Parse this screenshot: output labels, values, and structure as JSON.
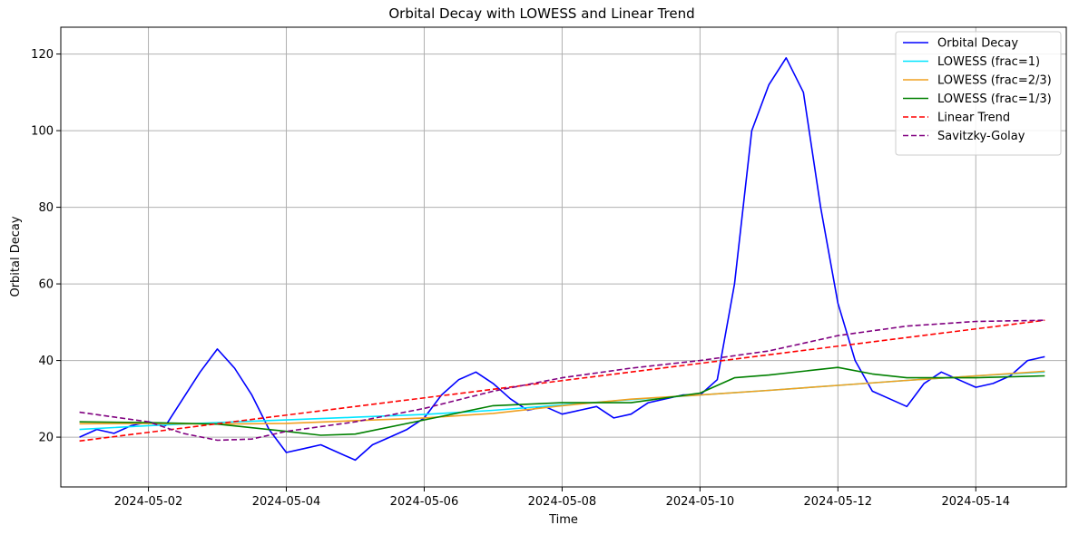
{
  "chart_data": {
    "type": "line",
    "title": "Orbital Decay with LOWESS and Linear Trend",
    "xlabel": "Time",
    "ylabel": "Orbital Decay",
    "xlim": [
      "2024-04-30T17:30",
      "2024-05-15T07:30"
    ],
    "ylim": [
      7,
      127
    ],
    "x_ticks": [
      "2024-05-02",
      "2024-05-04",
      "2024-05-06",
      "2024-05-08",
      "2024-05-10",
      "2024-05-12",
      "2024-05-14"
    ],
    "y_ticks": [
      20,
      40,
      60,
      80,
      100,
      120
    ],
    "grid": true,
    "legend_position": "top-right",
    "series": [
      {
        "name": "Orbital Decay",
        "color": "#0000ff",
        "dash": "solid",
        "x": [
          "2024-05-01T00:00",
          "2024-05-01T06:00",
          "2024-05-01T12:00",
          "2024-05-01T18:00",
          "2024-05-02T00:00",
          "2024-05-02T06:00",
          "2024-05-02T12:00",
          "2024-05-02T18:00",
          "2024-05-03T00:00",
          "2024-05-03T06:00",
          "2024-05-03T12:00",
          "2024-05-03T18:00",
          "2024-05-04T00:00",
          "2024-05-04T06:00",
          "2024-05-04T12:00",
          "2024-05-04T18:00",
          "2024-05-05T00:00",
          "2024-05-05T06:00",
          "2024-05-05T12:00",
          "2024-05-05T18:00",
          "2024-05-06T00:00",
          "2024-05-06T06:00",
          "2024-05-06T12:00",
          "2024-05-06T18:00",
          "2024-05-07T00:00",
          "2024-05-07T06:00",
          "2024-05-07T12:00",
          "2024-05-07T18:00",
          "2024-05-08T00:00",
          "2024-05-08T06:00",
          "2024-05-08T12:00",
          "2024-05-08T18:00",
          "2024-05-09T00:00",
          "2024-05-09T06:00",
          "2024-05-09T12:00",
          "2024-05-09T18:00",
          "2024-05-10T00:00",
          "2024-05-10T06:00",
          "2024-05-10T12:00",
          "2024-05-10T18:00",
          "2024-05-11T00:00",
          "2024-05-11T06:00",
          "2024-05-11T12:00",
          "2024-05-11T18:00",
          "2024-05-12T00:00",
          "2024-05-12T06:00",
          "2024-05-12T12:00",
          "2024-05-12T18:00",
          "2024-05-13T00:00",
          "2024-05-13T06:00",
          "2024-05-13T12:00",
          "2024-05-13T18:00",
          "2024-05-14T00:00",
          "2024-05-14T06:00",
          "2024-05-14T12:00",
          "2024-05-14T18:00",
          "2024-05-15T00:00"
        ],
        "y": [
          20,
          22,
          21,
          23,
          24,
          23,
          30,
          37,
          43,
          38,
          31,
          22,
          16,
          17,
          18,
          16,
          14,
          18,
          20,
          22,
          25,
          31,
          35,
          37,
          34,
          30,
          27,
          28,
          26,
          27,
          28,
          25,
          26,
          29,
          30,
          31,
          31,
          35,
          60,
          100,
          112,
          119,
          110,
          80,
          55,
          40,
          32,
          30,
          28,
          34,
          37,
          35,
          33,
          34,
          36,
          40,
          41
        ]
      },
      {
        "name": "LOWESS (frac=1)",
        "color": "#00e5ff",
        "dash": "solid",
        "x": [
          "2024-05-01T00:00",
          "2024-05-02T00:00",
          "2024-05-03T00:00",
          "2024-05-04T00:00",
          "2024-05-05T00:00",
          "2024-05-06T00:00",
          "2024-05-07T00:00",
          "2024-05-08T00:00",
          "2024-05-09T00:00",
          "2024-05-10T00:00",
          "2024-05-11T00:00",
          "2024-05-12T00:00",
          "2024-05-13T00:00",
          "2024-05-14T00:00",
          "2024-05-15T00:00"
        ],
        "y": [
          22.0,
          23.0,
          23.8,
          24.5,
          25.2,
          25.9,
          27.0,
          28.4,
          29.8,
          31.0,
          32.2,
          33.5,
          34.8,
          36.0,
          37.0
        ]
      },
      {
        "name": "LOWESS (frac=2/3)",
        "color": "#f0a020",
        "dash": "solid",
        "x": [
          "2024-05-01T00:00",
          "2024-05-02T00:00",
          "2024-05-03T00:00",
          "2024-05-04T00:00",
          "2024-05-05T00:00",
          "2024-05-06T00:00",
          "2024-05-07T00:00",
          "2024-05-08T00:00",
          "2024-05-09T00:00",
          "2024-05-10T00:00",
          "2024-05-11T00:00",
          "2024-05-12T00:00",
          "2024-05-13T00:00",
          "2024-05-14T00:00",
          "2024-05-15T00:00"
        ],
        "y": [
          23.5,
          23.6,
          23.4,
          23.6,
          24.3,
          25.0,
          26.2,
          28.2,
          29.9,
          31.0,
          32.2,
          33.5,
          34.8,
          36.0,
          37.2
        ]
      },
      {
        "name": "LOWESS (frac=1/3)",
        "color": "#008000",
        "dash": "solid",
        "x": [
          "2024-05-01T00:00",
          "2024-05-02T00:00",
          "2024-05-03T00:00",
          "2024-05-04T00:00",
          "2024-05-04T12:00",
          "2024-05-05T00:00",
          "2024-05-06T00:00",
          "2024-05-07T00:00",
          "2024-05-08T00:00",
          "2024-05-09T00:00",
          "2024-05-10T00:00",
          "2024-05-10T12:00",
          "2024-05-11T00:00",
          "2024-05-12T00:00",
          "2024-05-12T12:00",
          "2024-05-13T00:00",
          "2024-05-14T00:00",
          "2024-05-15T00:00"
        ],
        "y": [
          24.0,
          23.8,
          23.4,
          21.5,
          20.5,
          20.8,
          24.5,
          28.2,
          29.0,
          29.0,
          31.5,
          35.5,
          36.2,
          38.2,
          36.5,
          35.5,
          35.5,
          36.0
        ]
      },
      {
        "name": "Linear Trend",
        "color": "#ff0000",
        "dash": "dashed",
        "x": [
          "2024-05-01T00:00",
          "2024-05-15T00:00"
        ],
        "y": [
          19.0,
          50.5
        ]
      },
      {
        "name": "Savitzky-Golay",
        "color": "#800080",
        "dash": "dashed",
        "x": [
          "2024-05-01T00:00",
          "2024-05-02T00:00",
          "2024-05-02T12:00",
          "2024-05-03T00:00",
          "2024-05-03T12:00",
          "2024-05-04T00:00",
          "2024-05-05T00:00",
          "2024-05-06T00:00",
          "2024-05-07T00:00",
          "2024-05-08T00:00",
          "2024-05-09T00:00",
          "2024-05-10T00:00",
          "2024-05-11T00:00",
          "2024-05-12T00:00",
          "2024-05-13T00:00",
          "2024-05-14T00:00",
          "2024-05-15T00:00"
        ],
        "y": [
          26.5,
          24.0,
          21.0,
          19.2,
          19.5,
          21.5,
          24.0,
          27.5,
          32.0,
          35.5,
          38.0,
          40.0,
          42.5,
          46.5,
          49.0,
          50.2,
          50.5
        ]
      }
    ]
  }
}
